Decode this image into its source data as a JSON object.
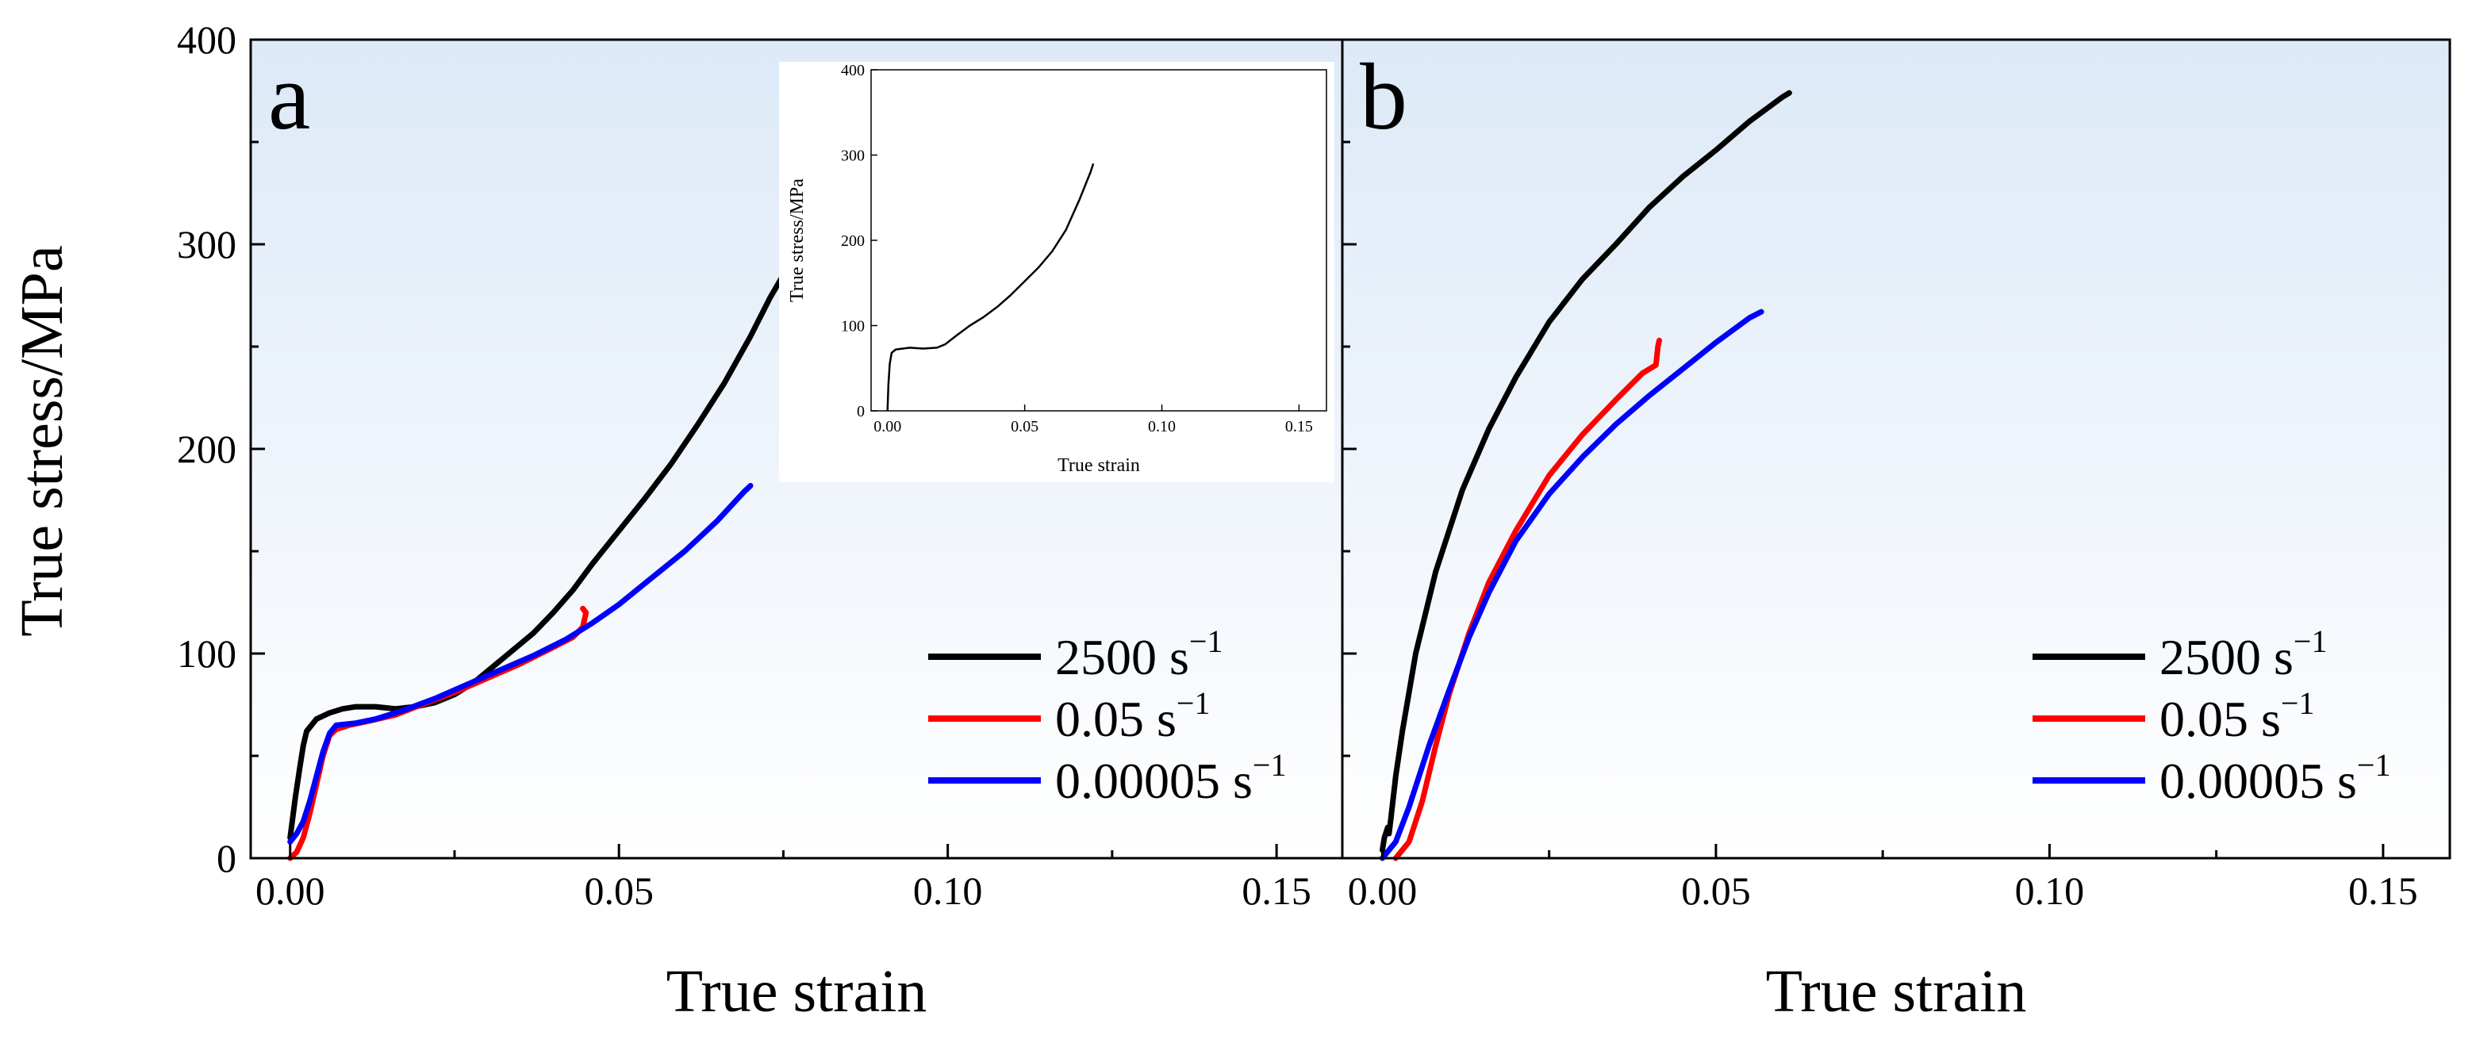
{
  "figure": {
    "y_axis_label": "True stress/MPa",
    "x_axis_label": "True strain"
  },
  "colors": {
    "rate_2500": "#000000",
    "rate_0_05": "#ff0000",
    "rate_0_00005": "#0000ff",
    "panel_bg_top": "#dde9f7",
    "panel_bg_bottom": "#ffffff"
  },
  "chart_data": [
    {
      "panel_label": "a",
      "type": "line",
      "xlim": [
        -0.006,
        0.16
      ],
      "ylim": [
        0,
        400
      ],
      "x_ticks": [
        "0.00",
        "0.05",
        "0.10",
        "0.15"
      ],
      "y_ticks": [
        "0",
        "100",
        "200",
        "300",
        "400"
      ],
      "xlabel": "True strain",
      "ylabel": "True stress/MPa",
      "legend_position": "bottom-right",
      "series": [
        {
          "name": "2500 s⁻¹",
          "color": "#000000",
          "points": [
            [
              0.0,
              10
            ],
            [
              0.0008,
              30
            ],
            [
              0.0015,
              45
            ],
            [
              0.002,
              55
            ],
            [
              0.0025,
              62
            ],
            [
              0.004,
              68
            ],
            [
              0.006,
              71
            ],
            [
              0.008,
              73
            ],
            [
              0.01,
              74
            ],
            [
              0.013,
              74
            ],
            [
              0.016,
              73
            ],
            [
              0.019,
              74
            ],
            [
              0.022,
              76
            ],
            [
              0.025,
              80
            ],
            [
              0.028,
              86
            ],
            [
              0.031,
              94
            ],
            [
              0.034,
              102
            ],
            [
              0.037,
              110
            ],
            [
              0.04,
              120
            ],
            [
              0.043,
              131
            ],
            [
              0.046,
              144
            ],
            [
              0.05,
              160
            ],
            [
              0.054,
              176
            ],
            [
              0.058,
              193
            ],
            [
              0.062,
              212
            ],
            [
              0.066,
              232
            ],
            [
              0.07,
              255
            ],
            [
              0.073,
              274
            ],
            [
              0.075,
              285
            ]
          ]
        },
        {
          "name": "0.05 s⁻¹",
          "color": "#ff0000",
          "points": [
            [
              0.0,
              0
            ],
            [
              0.001,
              3
            ],
            [
              0.002,
              10
            ],
            [
              0.003,
              22
            ],
            [
              0.004,
              36
            ],
            [
              0.005,
              50
            ],
            [
              0.006,
              60
            ],
            [
              0.007,
              63
            ],
            [
              0.009,
              65
            ],
            [
              0.012,
              67
            ],
            [
              0.016,
              70
            ],
            [
              0.02,
              75
            ],
            [
              0.025,
              81
            ],
            [
              0.03,
              88
            ],
            [
              0.035,
              95
            ],
            [
              0.04,
              103
            ],
            [
              0.043,
              108
            ],
            [
              0.0445,
              113
            ],
            [
              0.045,
              120
            ],
            [
              0.0445,
              122
            ]
          ]
        },
        {
          "name": "0.00005 s⁻¹",
          "color": "#0000ff",
          "points": [
            [
              0.0,
              8
            ],
            [
              0.001,
              12
            ],
            [
              0.002,
              18
            ],
            [
              0.003,
              28
            ],
            [
              0.004,
              40
            ],
            [
              0.005,
              52
            ],
            [
              0.006,
              61
            ],
            [
              0.007,
              65
            ],
            [
              0.01,
              66
            ],
            [
              0.013,
              68
            ],
            [
              0.017,
              72
            ],
            [
              0.022,
              78
            ],
            [
              0.027,
              85
            ],
            [
              0.032,
              92
            ],
            [
              0.037,
              99
            ],
            [
              0.042,
              107
            ],
            [
              0.046,
              115
            ],
            [
              0.05,
              124
            ],
            [
              0.055,
              137
            ],
            [
              0.06,
              150
            ],
            [
              0.065,
              165
            ],
            [
              0.069,
              179
            ],
            [
              0.07,
              182
            ]
          ]
        }
      ],
      "inset": {
        "type": "line",
        "xlim": [
          -0.006,
          0.16
        ],
        "ylim": [
          0,
          400
        ],
        "x_ticks": [
          "0.00",
          "0.05",
          "0.10",
          "0.15"
        ],
        "y_ticks": [
          "0",
          "100",
          "200",
          "300",
          "400"
        ],
        "xlabel": "True strain",
        "ylabel": "True stress/MPa",
        "series": [
          {
            "color": "#000000",
            "points": [
              [
                0.0,
                0
              ],
              [
                0.0003,
                30
              ],
              [
                0.0008,
                55
              ],
              [
                0.0015,
                68
              ],
              [
                0.003,
                72
              ],
              [
                0.008,
                74
              ],
              [
                0.013,
                73
              ],
              [
                0.018,
                74
              ],
              [
                0.021,
                78
              ],
              [
                0.025,
                88
              ],
              [
                0.03,
                100
              ],
              [
                0.035,
                110
              ],
              [
                0.04,
                122
              ],
              [
                0.045,
                136
              ],
              [
                0.05,
                152
              ],
              [
                0.055,
                168
              ],
              [
                0.06,
                187
              ],
              [
                0.065,
                212
              ],
              [
                0.07,
                248
              ],
              [
                0.074,
                280
              ],
              [
                0.075,
                290
              ]
            ]
          }
        ]
      }
    },
    {
      "panel_label": "b",
      "type": "line",
      "xlim": [
        -0.006,
        0.16
      ],
      "ylim": [
        0,
        400
      ],
      "x_ticks": [
        "0.00",
        "0.05",
        "0.10",
        "0.15"
      ],
      "y_ticks": [],
      "xlabel": "True strain",
      "ylabel": "",
      "legend_position": "bottom-right",
      "series": [
        {
          "name": "2500 s⁻¹",
          "color": "#000000",
          "points": [
            [
              0.0,
              4
            ],
            [
              0.0003,
              10
            ],
            [
              0.0008,
              15
            ],
            [
              0.001,
              12
            ],
            [
              0.0013,
              20
            ],
            [
              0.002,
              40
            ],
            [
              0.003,
              62
            ],
            [
              0.005,
              100
            ],
            [
              0.008,
              140
            ],
            [
              0.012,
              180
            ],
            [
              0.016,
              210
            ],
            [
              0.02,
              235
            ],
            [
              0.025,
              262
            ],
            [
              0.03,
              283
            ],
            [
              0.035,
              300
            ],
            [
              0.04,
              318
            ],
            [
              0.045,
              333
            ],
            [
              0.05,
              346
            ],
            [
              0.055,
              360
            ],
            [
              0.06,
              372
            ],
            [
              0.061,
              374
            ]
          ]
        },
        {
          "name": "0.05 s⁻¹",
          "color": "#ff0000",
          "points": [
            [
              0.002,
              0
            ],
            [
              0.004,
              8
            ],
            [
              0.006,
              28
            ],
            [
              0.008,
              55
            ],
            [
              0.01,
              80
            ],
            [
              0.013,
              110
            ],
            [
              0.016,
              135
            ],
            [
              0.02,
              160
            ],
            [
              0.025,
              187
            ],
            [
              0.03,
              207
            ],
            [
              0.035,
              224
            ],
            [
              0.039,
              237
            ],
            [
              0.041,
              241
            ],
            [
              0.0413,
              250
            ],
            [
              0.0415,
              253
            ]
          ]
        },
        {
          "name": "0.00005 s⁻¹",
          "color": "#0000ff",
          "points": [
            [
              0.0,
              0
            ],
            [
              0.002,
              8
            ],
            [
              0.004,
              25
            ],
            [
              0.007,
              55
            ],
            [
              0.01,
              82
            ],
            [
              0.013,
              108
            ],
            [
              0.016,
              130
            ],
            [
              0.02,
              155
            ],
            [
              0.025,
              178
            ],
            [
              0.03,
              196
            ],
            [
              0.035,
              212
            ],
            [
              0.04,
              226
            ],
            [
              0.045,
              239
            ],
            [
              0.05,
              252
            ],
            [
              0.055,
              264
            ],
            [
              0.0568,
              267
            ]
          ]
        }
      ]
    }
  ]
}
